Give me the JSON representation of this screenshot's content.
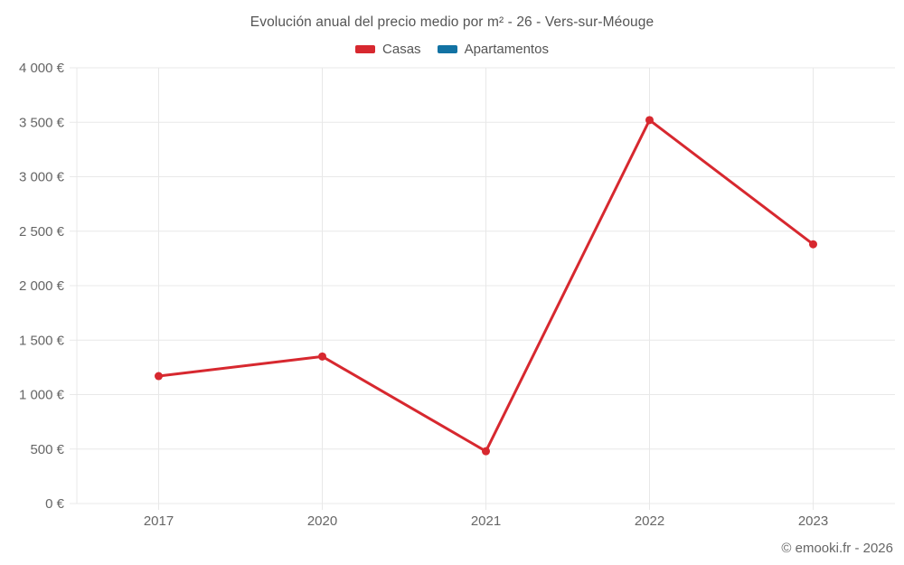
{
  "title": "Evolución anual del precio medio por m² - 26 - Vers-sur-Méouge",
  "legend": {
    "items": [
      {
        "label": "Casas",
        "color": "#d7282f"
      },
      {
        "label": "Apartamentos",
        "color": "#1272a3"
      }
    ]
  },
  "footer": {
    "credit": "© emooki.fr - 2026"
  },
  "colors": {
    "grid": "#e8e8e8",
    "axis_text": "#666666",
    "title_text": "#555555"
  },
  "chart_data": {
    "type": "line",
    "title": "Evolución anual del precio medio por m² - 26 - Vers-sur-Méouge",
    "categories": [
      "2017",
      "2020",
      "2021",
      "2022",
      "2023"
    ],
    "series": [
      {
        "name": "Casas",
        "color": "#d7282f",
        "values": [
          1170,
          1350,
          480,
          3520,
          2380
        ]
      },
      {
        "name": "Apartamentos",
        "color": "#1272a3",
        "values": []
      }
    ],
    "xlabel": "",
    "ylabel": "",
    "ylim": [
      0,
      4000
    ],
    "ytick_step": 500,
    "ytick_labels": [
      "0 €",
      "500 €",
      "1 000 €",
      "1 500 €",
      "2 000 €",
      "2 500 €",
      "3 000 €",
      "3 500 €",
      "4 000 €"
    ],
    "grid": true,
    "legend_position": "top"
  }
}
